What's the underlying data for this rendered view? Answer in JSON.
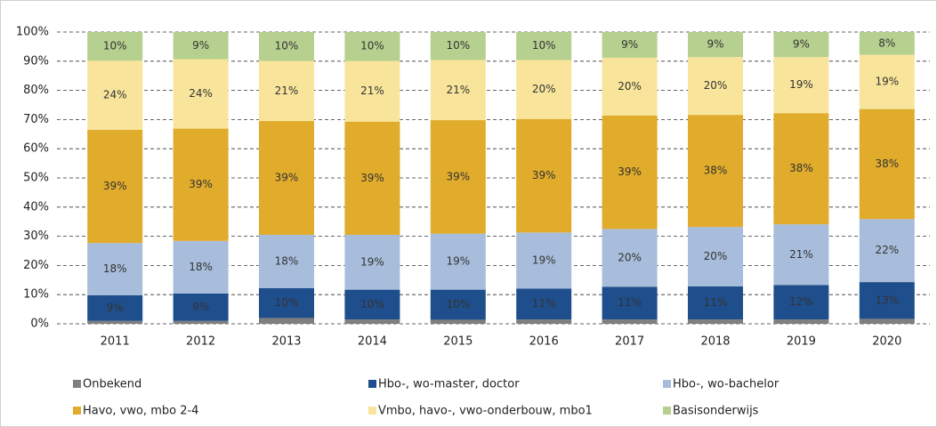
{
  "chart_data": {
    "type": "stacked_bar",
    "categories": [
      "2011",
      "2012",
      "2013",
      "2014",
      "2015",
      "2016",
      "2017",
      "2018",
      "2019",
      "2020"
    ],
    "series": [
      {
        "name": "Onbekend",
        "color": "#7f7f7f",
        "values": [
          1.0,
          1.0,
          2.0,
          1.5,
          1.4,
          1.5,
          1.5,
          1.5,
          1.5,
          1.7
        ]
      },
      {
        "name": "Hbo-, wo-master, doctor",
        "color": "#1f4e8c",
        "values": [
          8.8,
          9.4,
          10.2,
          10.2,
          10.3,
          10.6,
          11.2,
          11.3,
          11.8,
          12.6
        ],
        "value_labels": [
          "9%",
          "9%",
          "10%",
          "10%",
          "10%",
          "11%",
          "11%",
          "11%",
          "12%",
          "13%"
        ]
      },
      {
        "name": "Hbo-, wo-bachelor",
        "color": "#a7bddb",
        "values": [
          17.9,
          18.0,
          18.3,
          18.8,
          19.2,
          19.2,
          19.8,
          20.4,
          20.8,
          21.6
        ],
        "value_labels": [
          "18%",
          "18%",
          "18%",
          "19%",
          "19%",
          "19%",
          "20%",
          "20%",
          "21%",
          "22%"
        ]
      },
      {
        "name": "Havo, vwo, mbo 2-4",
        "color": "#e1ab2b",
        "values": [
          38.8,
          38.5,
          39.0,
          38.8,
          38.9,
          38.9,
          38.9,
          38.4,
          38.1,
          37.7
        ],
        "value_labels": [
          "39%",
          "39%",
          "39%",
          "39%",
          "39%",
          "39%",
          "39%",
          "38%",
          "38%",
          "38%"
        ]
      },
      {
        "name": "Vmbo, havo-, vwo-onderbouw, mbo1",
        "color": "#f8e59b",
        "values": [
          23.7,
          23.8,
          20.6,
          20.8,
          20.6,
          20.2,
          19.8,
          19.8,
          19.2,
          18.6
        ],
        "value_labels": [
          "24%",
          "24%",
          "21%",
          "21%",
          "21%",
          "20%",
          "20%",
          "20%",
          "19%",
          "19%"
        ]
      },
      {
        "name": "Basisonderwijs",
        "color": "#b6d08f",
        "values": [
          9.8,
          9.3,
          9.9,
          9.9,
          9.6,
          9.6,
          8.8,
          8.6,
          8.6,
          7.8
        ],
        "value_labels": [
          "10%",
          "9%",
          "10%",
          "10%",
          "10%",
          "10%",
          "9%",
          "9%",
          "9%",
          "8%"
        ]
      }
    ],
    "ylim": [
      0,
      100
    ],
    "yticks": [
      {
        "value": 0,
        "label": "0%"
      },
      {
        "value": 10,
        "label": "10%"
      },
      {
        "value": 20,
        "label": "20%"
      },
      {
        "value": 30,
        "label": "30%"
      },
      {
        "value": 40,
        "label": "40%"
      },
      {
        "value": 50,
        "label": "50%"
      },
      {
        "value": 60,
        "label": "60%"
      },
      {
        "value": 70,
        "label": "70%"
      },
      {
        "value": 80,
        "label": "80%"
      },
      {
        "value": 90,
        "label": "90%"
      },
      {
        "value": 100,
        "label": "100%"
      }
    ],
    "grid": true,
    "legend": "bottom"
  }
}
